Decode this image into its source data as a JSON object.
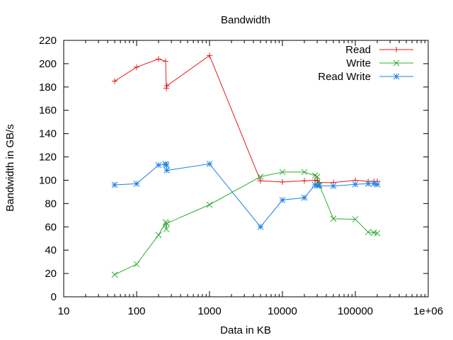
{
  "chart_data": {
    "type": "line",
    "title": "Bandwidth",
    "xlabel": "Data in KB",
    "ylabel": "Bandwidth in GB/s",
    "xscale": "log",
    "xlim": [
      10,
      1000000
    ],
    "ylim": [
      0,
      220
    ],
    "grid": false,
    "legend_position": "top-right",
    "xticks": [
      10,
      100,
      1000,
      10000,
      100000,
      1000000
    ],
    "xtick_labels": [
      "10",
      "100",
      "1000",
      "10000",
      "100000",
      "1e+06"
    ],
    "yticks": [
      0,
      20,
      40,
      60,
      80,
      100,
      120,
      140,
      160,
      180,
      200,
      220
    ],
    "ytick_labels": [
      "0",
      "20",
      "40",
      "60",
      "80",
      "100",
      "120",
      "140",
      "160",
      "180",
      "200",
      "220"
    ],
    "series": [
      {
        "name": "Read",
        "color": "#e41a1c",
        "marker": "plus",
        "x": [
          50,
          100,
          200,
          250,
          256,
          260,
          1000,
          5000,
          10000,
          20000,
          28000,
          30000,
          32000,
          50000,
          100000,
          150000,
          180000,
          200000
        ],
        "y": [
          185,
          197,
          204,
          202,
          179,
          181,
          207,
          99.5,
          98.5,
          99.5,
          100,
          99.5,
          98,
          98,
          100,
          99,
          99,
          99
        ]
      },
      {
        "name": "Write",
        "color": "#33aa33",
        "marker": "cross",
        "x": [
          50,
          100,
          200,
          250,
          256,
          260,
          1000,
          5000,
          10000,
          20000,
          28000,
          30000,
          32000,
          50000,
          100000,
          150000,
          180000,
          200000
        ],
        "y": [
          19,
          28,
          53,
          64,
          58,
          63,
          79,
          103,
          107,
          107,
          104,
          103,
          96,
          67,
          66.5,
          55.5,
          55,
          54.5
        ]
      },
      {
        "name": "Read Write",
        "color": "#1e80e0",
        "marker": "star",
        "x": [
          50,
          100,
          200,
          250,
          256,
          260,
          1000,
          5000,
          10000,
          20000,
          28000,
          30000,
          32000,
          50000,
          100000,
          150000,
          180000,
          200000
        ],
        "y": [
          96,
          97,
          113,
          114,
          113,
          108.5,
          114,
          60,
          83,
          85,
          96,
          95.5,
          95.5,
          95,
          96.5,
          97,
          97,
          96.5
        ]
      }
    ]
  }
}
